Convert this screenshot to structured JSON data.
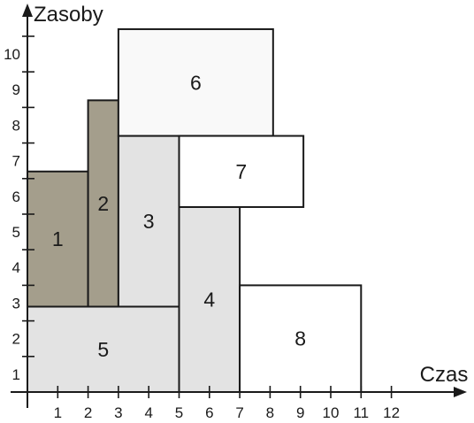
{
  "axes": {
    "x_title": "Czas",
    "y_title": "Zasoby",
    "x_ticks": [
      "1",
      "2",
      "3",
      "4",
      "5",
      "6",
      "7",
      "8",
      "9",
      "10",
      "11",
      "12"
    ],
    "y_ticks": [
      "1",
      "2",
      "3",
      "4",
      "5",
      "6",
      "7",
      "8",
      "9",
      "10"
    ],
    "x_range": [
      0,
      12
    ],
    "y_range": [
      0,
      10
    ],
    "axis_color": "#1a1a1a"
  },
  "blocks": [
    {
      "label": "1",
      "x0": 0,
      "x1": 2,
      "y0": 2.4,
      "y1": 6.2,
      "fill": "#a49e8c"
    },
    {
      "label": "2",
      "x0": 2,
      "x1": 3,
      "y0": 2.4,
      "y1": 8.2,
      "fill": "#a49e8c"
    },
    {
      "label": "3",
      "x0": 3,
      "x1": 5,
      "y0": 2.4,
      "y1": 7.2,
      "fill": "#e3e3e3"
    },
    {
      "label": "4",
      "x0": 5,
      "x1": 7,
      "y0": 0,
      "y1": 5.2,
      "fill": "#e3e3e3"
    },
    {
      "label": "5",
      "x0": 0,
      "x1": 5,
      "y0": 0,
      "y1": 2.4,
      "fill": "#e3e3e3"
    },
    {
      "label": "6",
      "x0": 3,
      "x1": 8.1,
      "y0": 7.2,
      "y1": 10.2,
      "fill": "#f9f9f9"
    },
    {
      "label": "7",
      "x0": 5,
      "x1": 9.1,
      "y0": 5.2,
      "y1": 7.2,
      "fill": "#ffffff"
    },
    {
      "label": "8",
      "x0": 7,
      "x1": 11,
      "y0": 0,
      "y1": 3.0,
      "fill": "#ffffff"
    }
  ]
}
